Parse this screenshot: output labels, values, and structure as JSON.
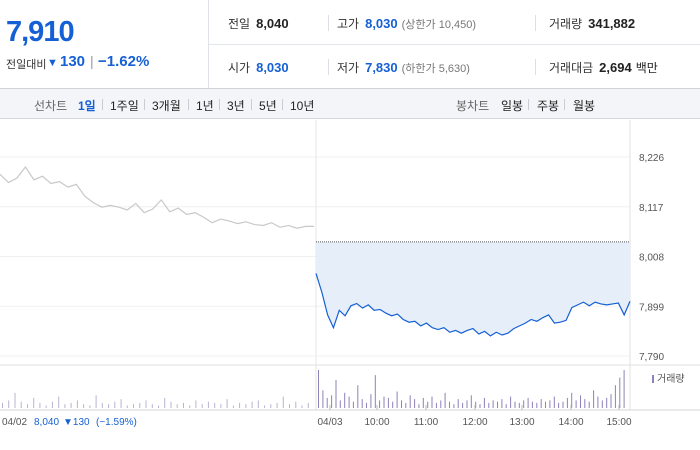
{
  "quote": {
    "current_price": "7,910",
    "change_label": "전일대비",
    "change_value": "130",
    "change_rate": "−1.62%",
    "prev_close": {
      "label": "전일",
      "value": "8,040"
    },
    "high": {
      "label": "고가",
      "value": "8,030",
      "limit_label": "(상한가 10,450)"
    },
    "volume": {
      "label": "거래량",
      "value": "341,882"
    },
    "open": {
      "label": "시가",
      "value": "8,030"
    },
    "low": {
      "label": "저가",
      "value": "7,830",
      "limit_label": "(하한가 5,630)"
    },
    "turnover": {
      "label": "거래대금",
      "value": "2,694",
      "unit": "백만"
    }
  },
  "toolbar": {
    "line_label": "선차트",
    "line_periods": [
      "1일",
      "1주일",
      "3개월",
      "1년",
      "3년",
      "5년",
      "10년"
    ],
    "active_period": "1일",
    "candle_label": "봉차트",
    "candle_periods": [
      "일봉",
      "주봉",
      "월봉"
    ]
  },
  "colors": {
    "accent": "#1560d4",
    "fall": "#1560d4",
    "prev_day_line": "#c8c8c8",
    "fill": "#e6eef9",
    "volume": "#8e82b8"
  },
  "chart_data": {
    "type": "line",
    "y_ticks": [
      "8,226",
      "8,117",
      "8,008",
      "7,899",
      "7,790"
    ],
    "y_tick_values": [
      8226,
      8117,
      8008,
      7899,
      7790
    ],
    "ylim": [
      7790,
      8226
    ],
    "reference_line": 8040,
    "x_ticks": [
      "04/03",
      "10:00",
      "11:00",
      "12:00",
      "13:00",
      "14:00",
      "15:00"
    ],
    "prev_day_footer": {
      "date": "04/02",
      "price": "8,040",
      "change": "▼130",
      "rate": "(−1.59%)"
    },
    "volume_legend": "거래량",
    "series": [
      {
        "values": [
          8188,
          8170,
          8180,
          8204,
          8176,
          8184,
          8168,
          8172,
          8160,
          8166,
          8140,
          8126,
          8116,
          8120,
          8116,
          8110,
          8124,
          8104,
          8112,
          8132,
          8106,
          8114,
          8100,
          8104,
          8094,
          8082,
          8090,
          8086,
          8080,
          8084,
          8078,
          8076,
          8082,
          8072,
          8076,
          8070,
          8074,
          8074
        ]
      },
      {
        "values": [
          7971,
          7930,
          7880,
          7852,
          7890,
          7878,
          7900,
          7905,
          7895,
          7902,
          7890,
          7892,
          7884,
          7878,
          7882,
          7870,
          7864,
          7866,
          7856,
          7862,
          7852,
          7848,
          7852,
          7842,
          7846,
          7840,
          7846,
          7850,
          7838,
          7844,
          7834,
          7842,
          7836,
          7840,
          7850,
          7856,
          7862,
          7870,
          7866,
          7874,
          7880,
          7862,
          7864,
          7868,
          7896,
          7902,
          7908,
          7900,
          7908,
          7904,
          7902,
          7904,
          7906,
          7880,
          7910
        ]
      }
    ],
    "volume_bars": [
      4,
      6,
      12,
      5,
      3,
      8,
      4,
      2,
      5,
      9,
      3,
      4,
      6,
      3,
      2,
      10,
      4,
      3,
      5,
      7,
      2,
      3,
      4,
      6,
      3,
      2,
      8,
      5,
      3,
      4,
      2,
      6,
      3,
      5,
      4,
      3,
      7,
      2,
      4,
      3,
      5,
      6,
      2,
      3,
      4,
      9,
      3,
      5,
      2,
      4,
      30,
      14,
      8,
      10,
      22,
      6,
      12,
      9,
      5,
      18,
      7,
      4,
      11,
      26,
      6,
      9,
      8,
      5,
      13,
      6,
      4,
      10,
      7,
      3,
      8,
      5,
      9,
      4,
      6,
      12,
      5,
      3,
      7,
      4,
      6,
      10,
      5,
      3,
      8,
      4,
      6,
      5,
      7,
      3,
      9,
      5,
      4,
      6,
      8,
      5,
      4,
      7,
      5,
      6,
      9,
      4,
      5,
      8,
      12,
      6,
      10,
      7,
      5,
      14,
      9,
      6,
      8,
      11,
      18,
      24,
      30
    ]
  }
}
